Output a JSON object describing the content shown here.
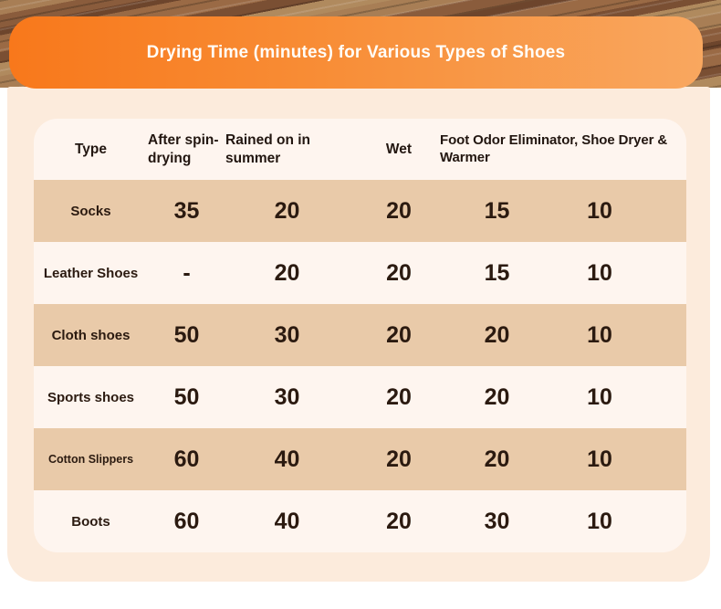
{
  "chart_data": {
    "type": "table",
    "title": "Drying Time (minutes) for Various Types of Shoes",
    "columns": [
      "Type",
      "After spin-drying",
      "Rained on in summer",
      "Wet",
      "Foot Odor Eliminator, Shoe Dryer & Warmer"
    ],
    "rows": [
      {
        "type": "Socks",
        "values": [
          "35",
          "20",
          "20",
          "15",
          "10"
        ]
      },
      {
        "type": "Leather Shoes",
        "values": [
          "-",
          "20",
          "20",
          "15",
          "10"
        ]
      },
      {
        "type": "Cloth shoes",
        "values": [
          "50",
          "30",
          "20",
          "20",
          "10"
        ]
      },
      {
        "type": "Sports shoes",
        "values": [
          "50",
          "30",
          "20",
          "20",
          "10"
        ]
      },
      {
        "type": "Cotton Slippers",
        "values": [
          "60",
          "40",
          "20",
          "20",
          "10"
        ]
      },
      {
        "type": "Boots",
        "values": [
          "60",
          "40",
          "20",
          "30",
          "10"
        ]
      }
    ],
    "layout_hints": {
      "last_header_spans_columns": 2,
      "shaded_row_indices": [
        0,
        2,
        4
      ]
    }
  },
  "colors": {
    "banner_gradient_start": "#f8781b",
    "banner_gradient_end": "#f9a75f",
    "panel_bg": "#fcebdc",
    "card_bg": "#fef5ef",
    "row_shaded_bg": "#e9caa9",
    "text_dark": "#2b1a10",
    "title_text": "#fffdf8",
    "wood_brown": "#8a5c3c"
  }
}
